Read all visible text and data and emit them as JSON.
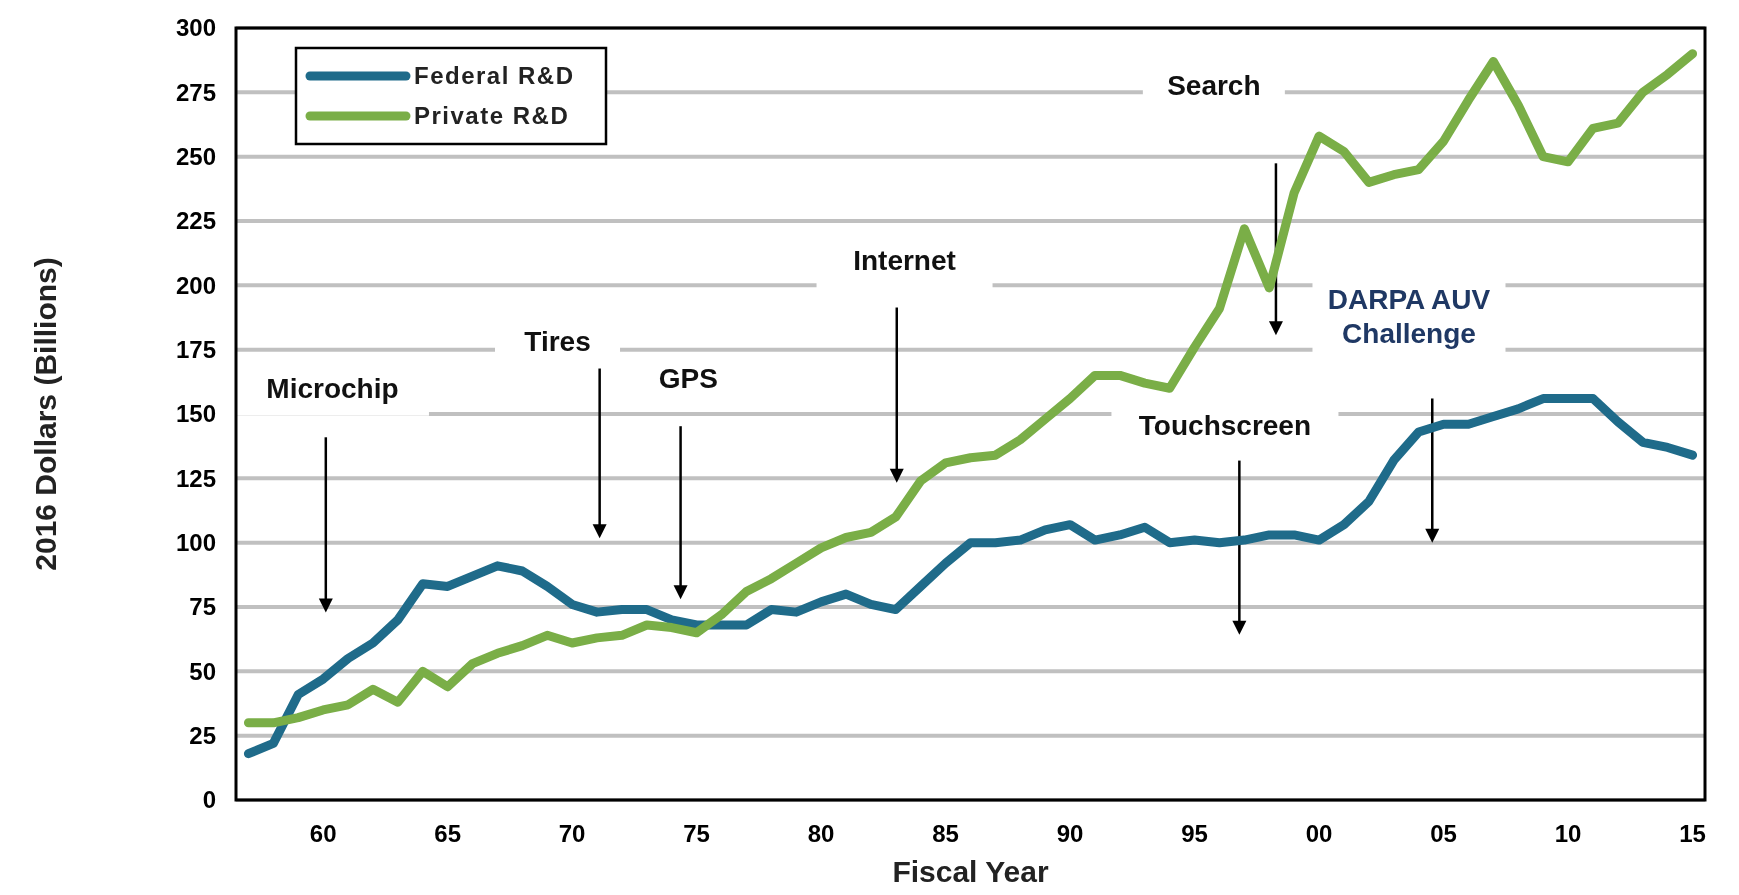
{
  "chart_data": {
    "type": "line",
    "xlabel": "Fiscal Year",
    "ylabel": "2016 Dollars (Billions)",
    "x": [
      1957,
      1958,
      1959,
      1960,
      1961,
      1962,
      1963,
      1964,
      1965,
      1966,
      1967,
      1968,
      1969,
      1970,
      1971,
      1972,
      1973,
      1974,
      1975,
      1976,
      1977,
      1978,
      1979,
      1980,
      1981,
      1982,
      1983,
      1984,
      1985,
      1986,
      1987,
      1988,
      1989,
      1990,
      1991,
      1992,
      1993,
      1994,
      1995,
      1996,
      1997,
      1998,
      1999,
      2000,
      2001,
      2002,
      2003,
      2004,
      2005,
      2006,
      2007,
      2008,
      2009,
      2010,
      2011,
      2012,
      2013,
      2014,
      2015
    ],
    "series": [
      {
        "name": "Federal R&D",
        "color": "#1f6b8a",
        "values": [
          18,
          22,
          41,
          47,
          55,
          61,
          70,
          84,
          83,
          87,
          91,
          89,
          83,
          76,
          73,
          74,
          74,
          70,
          68,
          68,
          68,
          74,
          73,
          77,
          80,
          76,
          74,
          83,
          92,
          100,
          100,
          101,
          105,
          107,
          101,
          103,
          106,
          100,
          101,
          100,
          101,
          103,
          103,
          101,
          107,
          116,
          132,
          143,
          146,
          146,
          149,
          152,
          156,
          156,
          156,
          147,
          139,
          137,
          134
        ]
      },
      {
        "name": "Private R&D",
        "color": "#7aae47",
        "values": [
          30,
          30,
          32,
          35,
          37,
          43,
          38,
          50,
          44,
          53,
          57,
          60,
          64,
          61,
          63,
          64,
          68,
          67,
          65,
          72,
          81,
          86,
          92,
          98,
          102,
          104,
          110,
          124,
          131,
          133,
          134,
          140,
          148,
          156,
          165,
          165,
          162,
          160,
          176,
          191,
          222,
          199,
          236,
          258,
          252,
          240,
          243,
          245,
          256,
          272,
          287,
          270,
          250,
          248,
          261,
          263,
          275,
          282,
          290
        ]
      }
    ],
    "xlim": [
      1956.5,
      2015.5
    ],
    "xticks": [
      {
        "value": 1960,
        "label": "60"
      },
      {
        "value": 1965,
        "label": "65"
      },
      {
        "value": 1970,
        "label": "70"
      },
      {
        "value": 1975,
        "label": "75"
      },
      {
        "value": 1980,
        "label": "80"
      },
      {
        "value": 1985,
        "label": "85"
      },
      {
        "value": 1990,
        "label": "90"
      },
      {
        "value": 1995,
        "label": "95"
      },
      {
        "value": 2000,
        "label": "00"
      },
      {
        "value": 2005,
        "label": "05"
      },
      {
        "value": 2010,
        "label": "10"
      },
      {
        "value": 2015,
        "label": "15"
      }
    ],
    "ylim": [
      0,
      300
    ],
    "yticks": [
      0,
      25,
      50,
      75,
      100,
      125,
      150,
      175,
      200,
      225,
      250,
      275,
      300
    ],
    "grid": "y",
    "legend": "top left",
    "marker": "none",
    "line_style": "solid",
    "annotations": [
      "Microchip",
      "Tires",
      "GPS",
      "Internet",
      "Search",
      "Touchscreen",
      "DARPA AUV Challenge"
    ]
  }
}
